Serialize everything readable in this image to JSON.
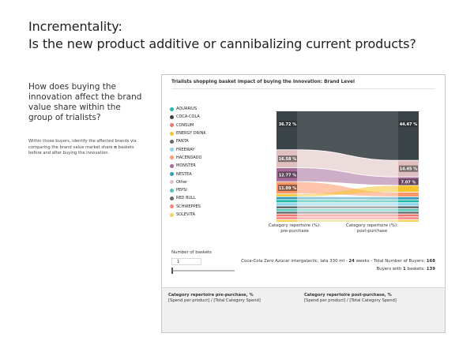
{
  "page": {
    "title_line1": "Incrementality:",
    "title_line2": "Is the new product additive or cannibalizing current products?"
  },
  "left": {
    "question": "How does buying the innovation affect the brand value share within the group of trialists?",
    "desc_part1": "Within those buyers, identify the affected brands via comparing the brand value market share",
    "desc_n": "n",
    "desc_part2": "baskets before and after buying the innovation."
  },
  "panel": {
    "title": "Trialists shopping basket impact of buying the Innovation: Brand Level",
    "legend": [
      {
        "label": "AQUARIUS",
        "color": "#1fb7a6"
      },
      {
        "label": "COCA-COLA",
        "color": "#3a4347"
      },
      {
        "label": "CONSUM",
        "color": "#f07470"
      },
      {
        "label": "ENERGY DRINK",
        "color": "#f4c52b"
      },
      {
        "label": "FANTA",
        "color": "#5f6b6d"
      },
      {
        "label": "FREEWAY",
        "color": "#8ad4eb"
      },
      {
        "label": "HACENDADO",
        "color": "#fe9666"
      },
      {
        "label": "MONSTER",
        "color": "#a66999"
      },
      {
        "label": "NESTEA",
        "color": "#3599b8"
      },
      {
        "label": "Other",
        "color": "#dfbfbf"
      },
      {
        "label": "PEPSI",
        "color": "#4ac5bb"
      },
      {
        "label": "RED BULL",
        "color": "#5f6b6d"
      },
      {
        "label": "SCHWEPPES",
        "color": "#fb8281"
      },
      {
        "label": "SOLEVITA",
        "color": "#f4d25a"
      }
    ],
    "pre_axis_line1": "Category repertoire (%):",
    "pre_axis_line2": "pre-purchase",
    "post_axis_line1": "Category repertoire (%):",
    "post_axis_line2": "post-purchase",
    "number_of_baskets_label": "Number of baskets",
    "number_of_baskets_value": "1",
    "slider_fraction": 0,
    "product_text": "Coca-Cola Zero Azúcar intergalactic, lata 330 ml -",
    "weeks_bold": "24",
    "weeks_text": "weeks - Total Number of Buyers:",
    "total_buyers": "168",
    "buyers_with_text": "Buyers with",
    "baskets_bold": "1",
    "baskets_text": "baskets:",
    "buyers_with_value": "139"
  },
  "chart_data": {
    "type": "sankey",
    "title": "Trialists shopping basket impact of buying the Innovation: Brand Level",
    "stages": [
      "Category repertoire (%): pre-purchase",
      "Category repertoire (%): post-purchase"
    ],
    "labels": [
      {
        "brand": "COCA-COLA",
        "stage": "pre-purchase",
        "value": "36.72 %"
      },
      {
        "brand": "Other",
        "stage": "pre-purchase",
        "value": "16.58 %"
      },
      {
        "brand": "MONSTER",
        "stage": "pre-purchase",
        "value": "12.77 %"
      },
      {
        "brand": "HACENDADO",
        "stage": "pre-purchase",
        "value": "11.09 %"
      },
      {
        "brand": "COCA-COLA",
        "stage": "post-purchase",
        "value": "44.47 %"
      },
      {
        "brand": "Other",
        "stage": "post-purchase",
        "value": "14.45 %"
      },
      {
        "brand": "MONSTER",
        "stage": "post-purchase",
        "value": "7.07 %"
      }
    ],
    "flows": [
      {
        "brand": "COCA-COLA",
        "pre": 36.72,
        "post": 44.47,
        "color": "#3a4347"
      },
      {
        "brand": "Other",
        "pre": 16.58,
        "post": 14.45,
        "color": "#dfbfbf"
      },
      {
        "brand": "MONSTER",
        "pre": 12.77,
        "post": 7.07,
        "color": "#a66999"
      },
      {
        "brand": "HACENDADO",
        "pre": 11.09,
        "post": 3.6,
        "color": "#fe9666"
      },
      {
        "brand": "ENERGY DRINK",
        "pre": 1.9,
        "post": 5.5,
        "color": "#f4c52b"
      },
      {
        "brand": "NESTEA",
        "pre": 2.2,
        "post": 2.1,
        "color": "#3599b8"
      },
      {
        "brand": "AQUARIUS",
        "pre": 2.3,
        "post": 2.0,
        "color": "#1fb7a6"
      },
      {
        "brand": "FREEWAY",
        "pre": 2.4,
        "post": 2.3,
        "color": "#8ad4eb"
      },
      {
        "brand": "FANTA",
        "pre": 2.0,
        "post": 1.9,
        "color": "#5f6b6d"
      },
      {
        "brand": "PEPSI",
        "pre": 1.9,
        "post": 1.8,
        "color": "#4ac5bb"
      },
      {
        "brand": "RED BULL",
        "pre": 1.8,
        "post": 1.7,
        "color": "#5f6b6d"
      },
      {
        "brand": "CONSUM",
        "pre": 2.1,
        "post": 2.0,
        "color": "#f07470"
      },
      {
        "brand": "SCHWEPPES",
        "pre": 1.9,
        "post": 1.8,
        "color": "#fb8281"
      },
      {
        "brand": "SOLEVITA",
        "pre": 1.8,
        "post": 1.7,
        "color": "#f4d25a"
      }
    ]
  },
  "footer": {
    "pre_title": "Category repertoire pre-purchase, %",
    "pre_formula": "[Spend per product] / [Total Category Spend]",
    "post_title": "Category repertoire post-purchase, %",
    "post_formula": "[Spend per product] / [Total Category Spend]"
  }
}
